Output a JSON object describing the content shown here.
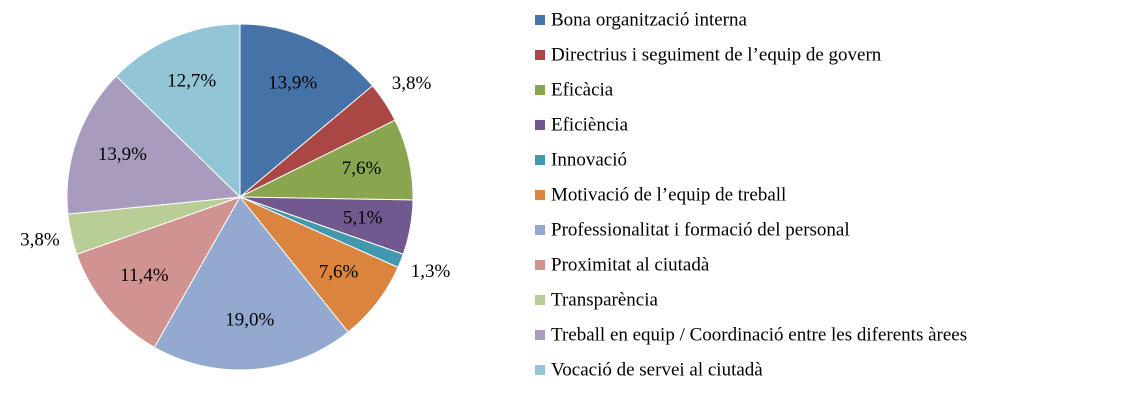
{
  "chart_data": {
    "type": "pie",
    "categories": [
      "Bona organització interna",
      "Directrius i seguiment de l’equip de govern",
      "Eficàcia",
      "Eficiència",
      "Innovació",
      "Motivació de l’equip de treball",
      "Professionalitat i formació del personal",
      "Proximitat al ciutadà",
      "Transparència",
      "Treball en equip / Coordinació entre les diferents àrees",
      "Vocació de servei al ciutadà"
    ],
    "values": [
      13.9,
      3.8,
      7.6,
      5.1,
      1.3,
      7.6,
      19.0,
      11.4,
      3.8,
      13.9,
      12.7
    ],
    "value_labels": [
      "13,9%",
      "3,8%",
      "7,6%",
      "5,1%",
      "1,3%",
      "7,6%",
      "19,0%",
      "11,4%",
      "3,8%",
      "13,9%",
      "12,7%"
    ],
    "colors": [
      "#4572a7",
      "#aa4643",
      "#89a54e",
      "#71588f",
      "#4198af",
      "#db843d",
      "#93a9cf",
      "#d19392",
      "#b9cd96",
      "#a99bbd",
      "#92c5d5"
    ],
    "legend": "right"
  }
}
